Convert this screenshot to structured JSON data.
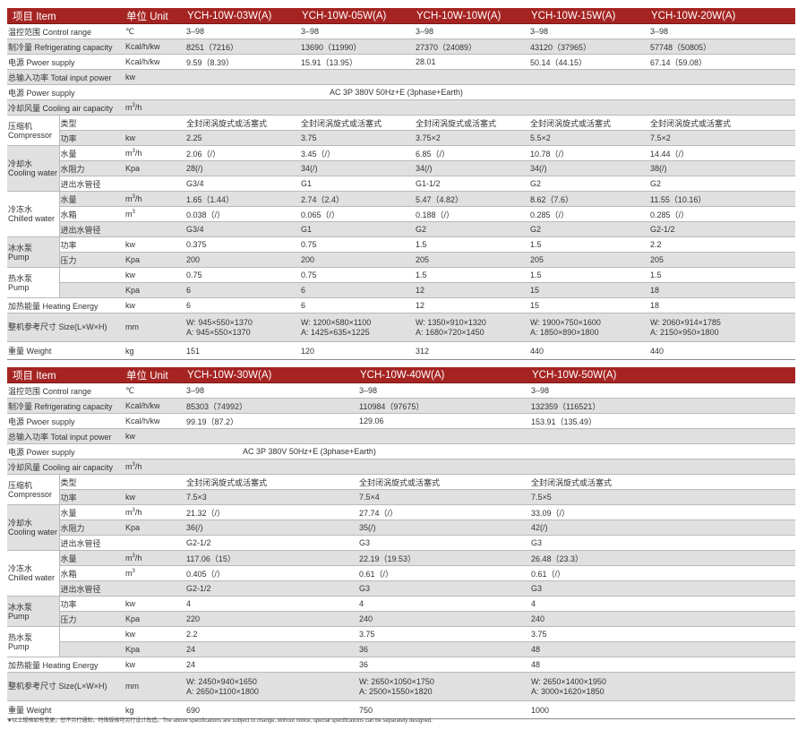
{
  "accent_color": "#a52422",
  "stripe_color": "#e0e0e0",
  "tables": [
    {
      "header": {
        "item": "项目 Item",
        "unit": "单位 Unit",
        "models": [
          "YCH-10W-03W(A)",
          "YCH-10W-05W(A)",
          "YCH-10W-10W(A)",
          "YCH-10W-15W(A)",
          "YCH-10W-20W(A)"
        ]
      },
      "span_indent": 163,
      "rows": [
        {
          "label": "温控范围 Control range",
          "unit": "℃",
          "values": [
            "3–98",
            "3–98",
            "3–98",
            "3–98",
            "3–98"
          ]
        },
        {
          "label": "制冷量 Refrigerating capacity",
          "unit": "Kcal/h/kw",
          "values": [
            "8251（7216）",
            "13690（11990）",
            "27370（24089）",
            "43120（37965）",
            "57748（50805）"
          ]
        },
        {
          "label": "电源 Pwoer supply",
          "unit": "Kcal/h/kw",
          "values": [
            "9.59（8.39）",
            "15.91（13.95）",
            "28.01",
            "50.14（44.15）",
            "67.14（59.08）"
          ]
        },
        {
          "label": "总输入功率 Total input power",
          "unit": "kw",
          "values": [
            "",
            "",
            "",
            "",
            ""
          ]
        },
        {
          "label": "电源 Power supply",
          "unit": "",
          "span_value": "AC 3P 380V 50Hz+E (3phase+Earth)"
        },
        {
          "label": "冷却风量 Cooling air capacity",
          "unit": "m³/h",
          "values": [
            "",
            "",
            "",
            "",
            ""
          ]
        },
        {
          "group": "压缩机",
          "group_en": "Compressor",
          "sub": "类型",
          "unit": "",
          "values": [
            "全封闭涡旋式或活塞式",
            "全封闭涡旋式或活塞式",
            "全封闭涡旋式或活塞式",
            "全封闭涡旋式或活塞式",
            "全封闭涡旋式或活塞式"
          ]
        },
        {
          "sub": "功率",
          "unit": "kw",
          "values": [
            "2.25",
            "3.75",
            "3.75×2",
            "5.5×2",
            "7.5×2"
          ]
        },
        {
          "group": "冷却水",
          "group_en": "Cooling water",
          "sub": "水量",
          "unit": "m³/h",
          "values": [
            "2.06（/）",
            "3.45（/）",
            "6.85（/）",
            "10.78（/）",
            "14.44（/）"
          ]
        },
        {
          "sub": "水阻力",
          "unit": "Kpa",
          "values": [
            "28(/)",
            "34(/)",
            "34(/)",
            "34(/)",
            "38(/)"
          ]
        },
        {
          "sub": "进出水管径",
          "unit": "",
          "values": [
            "G3/4",
            "G1",
            "G1-1/2",
            "G2",
            "G2"
          ]
        },
        {
          "group": "冷冻水",
          "group_en": "Chilled water",
          "sub": "水量",
          "unit": "m³/h",
          "values": [
            "1.65（1.44）",
            "2.74（2.4）",
            "5.47（4.82）",
            "8.62（7.6）",
            "11.55（10.16）"
          ]
        },
        {
          "sub": "水箱",
          "unit": "m³",
          "values": [
            "0.038（/）",
            "0.065（/）",
            "0.188（/）",
            "0.285（/）",
            "0.285（/）"
          ]
        },
        {
          "sub": "进出水管径",
          "unit": "",
          "values": [
            "G3/4",
            "G1",
            "G2",
            "G2",
            "G2-1/2"
          ]
        },
        {
          "group": "冰水泵",
          "group_en": "Pump",
          "sub": "功率",
          "unit": "kw",
          "values": [
            "0.375",
            "0.75",
            "1.5",
            "1.5",
            "2.2"
          ]
        },
        {
          "sub": "压力",
          "unit": "Kpa",
          "values": [
            "200",
            "200",
            "205",
            "205",
            "205"
          ]
        },
        {
          "group": "热水泵",
          "group_en": "Pump",
          "sub": "",
          "unit": "kw",
          "values": [
            "0.75",
            "0.75",
            "1.5",
            "1.5",
            "1.5"
          ]
        },
        {
          "sub": "",
          "unit": "Kpa",
          "values": [
            "6",
            "6",
            "12",
            "15",
            "18"
          ]
        },
        {
          "label": "加热能量 Heating Energy",
          "unit": "kw",
          "values": [
            "6",
            "6",
            "12",
            "15",
            "18"
          ]
        },
        {
          "label": "整机参考尺寸 Size(L×W×H)",
          "unit": "mm",
          "size": true,
          "values": [
            [
              "W: 945×550×1370",
              "A: 945×550×1370"
            ],
            [
              "W: 1200×580×1100",
              "A: 1425×635×1225"
            ],
            [
              "W: 1350×910×1320",
              "A: 1680×720×1450"
            ],
            [
              "W: 1900×750×1600",
              "A: 1850×890×1800"
            ],
            [
              "W: 2060×914×1785",
              "A: 2150×950×1800"
            ]
          ]
        },
        {
          "label": "重量 Weight",
          "unit": "kg",
          "weight": true,
          "values": [
            "151",
            "120",
            "312",
            "440",
            "440"
          ]
        }
      ]
    },
    {
      "header": {
        "item": "项目 Item",
        "unit": "单位 Unit",
        "models": [
          "YCH-10W-30W(A)",
          "YCH-10W-40W(A)",
          "YCH-10W-50W(A)"
        ]
      },
      "span_indent": 66,
      "rows": [
        {
          "label": "温控范围 Control range",
          "unit": "℃",
          "values": [
            "3–98",
            "3–98",
            "3–98"
          ]
        },
        {
          "label": "制冷量 Refrigerating capacity",
          "unit": "Kcal/h/kw",
          "values": [
            "85303（74992）",
            "110984（97675）",
            "132359（116521）"
          ]
        },
        {
          "label": "电源 Pwoer supply",
          "unit": "Kcal/h/kw",
          "values": [
            "99.19（87.2）",
            "129.06",
            "153.91（135.49）"
          ]
        },
        {
          "label": "总输入功率 Total input power",
          "unit": "kw",
          "values": [
            "",
            "",
            ""
          ]
        },
        {
          "label": "电源 Power supply",
          "unit": "",
          "span_value": "AC 3P 380V 50Hz+E (3phase+Earth)"
        },
        {
          "label": "冷却风量 Cooling air capacity",
          "unit": "m³/h",
          "values": [
            "",
            "",
            ""
          ]
        },
        {
          "group": "压缩机",
          "group_en": "Compressor",
          "sub": "类型",
          "unit": "",
          "values": [
            "全封闭涡旋式或活塞式",
            "全封闭涡旋式或活塞式",
            "全封闭涡旋式或活塞式"
          ]
        },
        {
          "sub": "功率",
          "unit": "kw",
          "values": [
            "7.5×3",
            "7.5×4",
            "7.5×5"
          ]
        },
        {
          "group": "冷却水",
          "group_en": "Cooling water",
          "sub": "水量",
          "unit": "m³/h",
          "values": [
            "21.32（/）",
            "27.74（/）",
            "33.09（/）"
          ]
        },
        {
          "sub": "水阻力",
          "unit": "Kpa",
          "values": [
            "36(/)",
            "35(/)",
            "42(/)"
          ]
        },
        {
          "sub": "进出水管径",
          "unit": "",
          "values": [
            "G2-1/2",
            "G3",
            "G3"
          ]
        },
        {
          "group": "冷冻水",
          "group_en": "Chilled water",
          "sub": "水量",
          "unit": "m³/h",
          "values": [
            "117.06（15）",
            "22.19（19.53）",
            "26.48（23.3）"
          ]
        },
        {
          "sub": "水箱",
          "unit": "m³",
          "values": [
            "0.405（/）",
            "0.61（/）",
            "0.61（/）"
          ]
        },
        {
          "sub": "进出水管径",
          "unit": "",
          "values": [
            "G2-1/2",
            "G3",
            "G3"
          ]
        },
        {
          "group": "冰水泵",
          "group_en": "Pump",
          "sub": "功率",
          "unit": "kw",
          "values": [
            "4",
            "4",
            "4"
          ]
        },
        {
          "sub": "压力",
          "unit": "Kpa",
          "values": [
            "220",
            "240",
            "240"
          ]
        },
        {
          "group": "热水泵",
          "group_en": "Pump",
          "sub": "",
          "unit": "kw",
          "values": [
            "2.2",
            "3.75",
            "3.75"
          ]
        },
        {
          "sub": "",
          "unit": "Kpa",
          "values": [
            "24",
            "36",
            "48"
          ]
        },
        {
          "label": "加热能量 Heating Energy",
          "unit": "kw",
          "values": [
            "24",
            "36",
            "48"
          ]
        },
        {
          "label": "整机参考尺寸 Size(L×W×H)",
          "unit": "mm",
          "size": true,
          "values": [
            [
              "W: 2450×940×1650",
              "A: 2650×1100×1800"
            ],
            [
              "W: 2650×1050×1750",
              "A: 2500×1550×1820"
            ],
            [
              "W: 2650×1400×1950",
              "A: 3000×1620×1850"
            ]
          ]
        },
        {
          "label": "重量 Weight",
          "unit": "kg",
          "weight": true,
          "values": [
            "690",
            "750",
            "1000"
          ]
        }
      ]
    }
  ],
  "footnote": "★以上规格如有变更，恕不另行通知，特殊规格可另行设计改造。The above specifications are subject to change, without notice, special specifications can be separately designed."
}
